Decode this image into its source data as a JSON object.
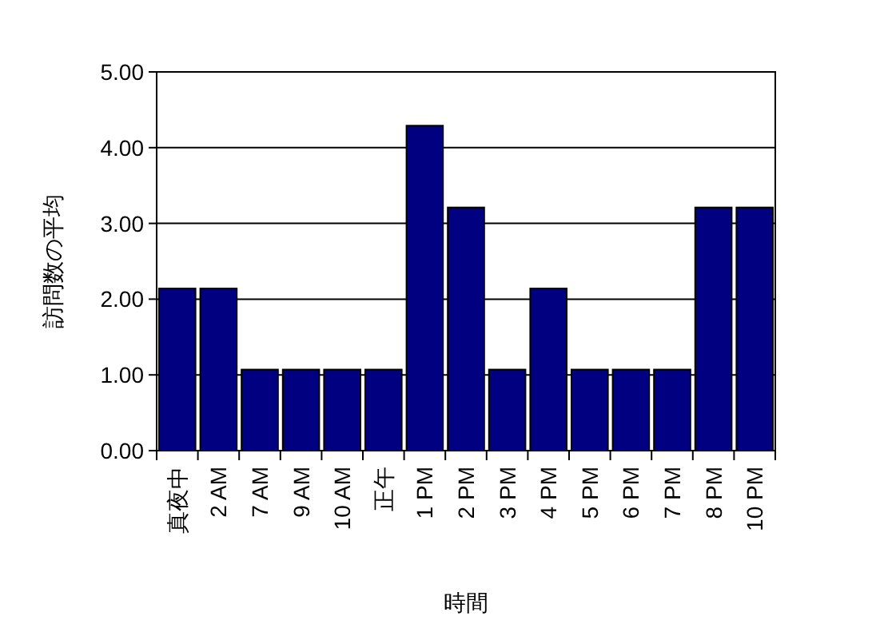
{
  "chart_data": {
    "type": "bar",
    "xlabel": "時間",
    "ylabel": "訪問数の平均",
    "categories": [
      "真夜中",
      "2 AM",
      "7 AM",
      "9 AM",
      "10 AM",
      "正午",
      "1 PM",
      "2 PM",
      "3 PM",
      "4 PM",
      "5 PM",
      "6 PM",
      "7 PM",
      "8 PM",
      "10 PM"
    ],
    "values": [
      2.14,
      2.14,
      1.07,
      1.07,
      1.07,
      1.07,
      4.29,
      3.21,
      1.07,
      2.14,
      1.07,
      1.07,
      1.07,
      3.21,
      3.21
    ],
    "color": "#000080",
    "ylim": [
      0,
      5
    ],
    "yticks": [
      {
        "value": 0,
        "label": "0.00"
      },
      {
        "value": 1,
        "label": "1.00"
      },
      {
        "value": 2,
        "label": "2.00"
      },
      {
        "value": 3,
        "label": "3.00"
      },
      {
        "value": 4,
        "label": "4.00"
      },
      {
        "value": 5,
        "label": "5.00"
      }
    ],
    "grid": "y"
  }
}
